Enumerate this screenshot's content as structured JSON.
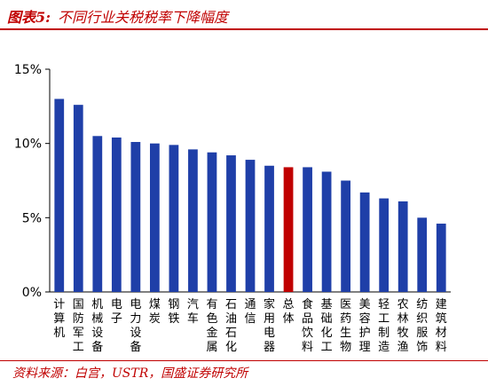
{
  "header": {
    "figure_label": "图表5:",
    "title_text": "不同行业关税税率下降幅度"
  },
  "footer": {
    "source": "资料来源：白宫，USTR，国盛证券研究所"
  },
  "colors": {
    "accent": "#c00000",
    "bar": "#1f3fa8",
    "highlight_bar": "#c00000"
  },
  "chart_data": {
    "type": "bar",
    "title": "不同行业关税税率下降幅度",
    "xlabel": "",
    "ylabel": "",
    "ylim": [
      0,
      15
    ],
    "yticks": [
      0,
      5,
      10,
      15
    ],
    "ytick_labels": [
      "0%",
      "5%",
      "10%",
      "15%"
    ],
    "grid": false,
    "legend": "none",
    "highlight_category": "总体",
    "categories": [
      "计算机",
      "国防军工",
      "机械设备",
      "电子",
      "电力设备",
      "煤炭",
      "钢铁",
      "汽车",
      "有色金属",
      "石油石化",
      "通信",
      "家用电器",
      "总体",
      "食品饮料",
      "基础化工",
      "医药生物",
      "美容护理",
      "轻工制造",
      "农林牧渔",
      "纺织服饰",
      "建筑材料"
    ],
    "values": [
      13.0,
      12.6,
      10.5,
      10.4,
      10.1,
      10.0,
      9.9,
      9.6,
      9.4,
      9.2,
      8.9,
      8.5,
      8.4,
      8.4,
      8.1,
      7.5,
      6.7,
      6.3,
      6.1,
      5.0,
      4.6
    ]
  }
}
